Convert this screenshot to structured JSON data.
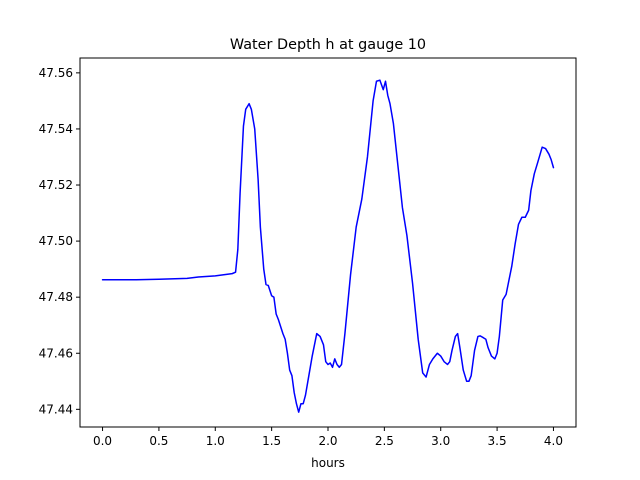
{
  "chart_data": {
    "type": "line",
    "title": "Water Depth h at gauge 10",
    "xlabel": "hours",
    "ylabel": "",
    "xlim": [
      -0.2,
      4.2
    ],
    "ylim": [
      47.4337,
      47.5653
    ],
    "grid": false,
    "legend": "none",
    "x_ticks": [
      0.0,
      0.5,
      1.0,
      1.5,
      2.0,
      2.5,
      3.0,
      3.5,
      4.0
    ],
    "x_tick_labels": [
      "0.0",
      "0.5",
      "1.0",
      "1.5",
      "2.0",
      "2.5",
      "3.0",
      "3.5",
      "4.0"
    ],
    "y_ticks": [
      47.44,
      47.46,
      47.48,
      47.5,
      47.52,
      47.54,
      47.56
    ],
    "y_tick_labels": [
      "47.44",
      "47.46",
      "47.48",
      "47.50",
      "47.52",
      "47.54",
      "47.56"
    ],
    "series": [
      {
        "color": "#0000ff",
        "x": [
          0.0,
          0.3,
          0.5,
          0.75,
          0.85,
          1.0,
          1.15,
          1.18,
          1.2,
          1.22,
          1.25,
          1.27,
          1.3,
          1.32,
          1.35,
          1.38,
          1.4,
          1.43,
          1.45,
          1.47,
          1.5,
          1.52,
          1.54,
          1.56,
          1.58,
          1.6,
          1.62,
          1.64,
          1.66,
          1.68,
          1.7,
          1.72,
          1.74,
          1.76,
          1.78,
          1.8,
          1.83,
          1.86,
          1.9,
          1.93,
          1.96,
          1.98,
          2.0,
          2.02,
          2.04,
          2.06,
          2.08,
          2.1,
          2.12,
          2.15,
          2.2,
          2.25,
          2.3,
          2.35,
          2.4,
          2.43,
          2.46,
          2.49,
          2.51,
          2.53,
          2.55,
          2.58,
          2.62,
          2.66,
          2.7,
          2.75,
          2.8,
          2.84,
          2.87,
          2.9,
          2.93,
          2.97,
          3.0,
          3.03,
          3.06,
          3.08,
          3.1,
          3.13,
          3.15,
          3.17,
          3.2,
          3.23,
          3.25,
          3.27,
          3.3,
          3.33,
          3.35,
          3.38,
          3.4,
          3.42,
          3.45,
          3.48,
          3.5,
          3.52,
          3.55,
          3.58,
          3.6,
          3.63,
          3.66,
          3.69,
          3.72,
          3.75,
          3.78,
          3.8,
          3.83,
          3.86,
          3.9,
          3.93,
          3.96,
          3.98,
          4.0
        ],
        "y": [
          47.4862,
          47.4862,
          47.4864,
          47.4867,
          47.4872,
          47.4876,
          47.4884,
          47.4889,
          47.497,
          47.517,
          47.541,
          47.547,
          47.549,
          47.547,
          47.54,
          47.522,
          47.505,
          47.49,
          47.4845,
          47.4842,
          47.4805,
          47.48,
          47.474,
          47.472,
          47.4695,
          47.467,
          47.465,
          47.46,
          47.454,
          47.452,
          47.446,
          47.442,
          47.439,
          47.442,
          47.442,
          47.445,
          47.452,
          47.459,
          47.467,
          47.466,
          47.463,
          47.457,
          47.456,
          47.4565,
          47.455,
          47.458,
          47.456,
          47.455,
          47.456,
          47.467,
          47.488,
          47.505,
          47.515,
          47.53,
          47.55,
          47.557,
          47.5574,
          47.554,
          47.557,
          47.552,
          47.549,
          47.542,
          47.527,
          47.512,
          47.502,
          47.485,
          47.465,
          47.453,
          47.4515,
          47.456,
          47.458,
          47.46,
          47.459,
          47.457,
          47.456,
          47.457,
          47.461,
          47.466,
          47.467,
          47.462,
          47.454,
          47.45,
          47.45,
          47.452,
          47.461,
          47.466,
          47.4662,
          47.4655,
          47.465,
          47.462,
          47.459,
          47.458,
          47.46,
          47.466,
          47.479,
          47.481,
          47.485,
          47.491,
          47.499,
          47.506,
          47.5085,
          47.5085,
          47.511,
          47.518,
          47.524,
          47.528,
          47.5335,
          47.533,
          47.531,
          47.529,
          47.5262
        ]
      }
    ]
  }
}
